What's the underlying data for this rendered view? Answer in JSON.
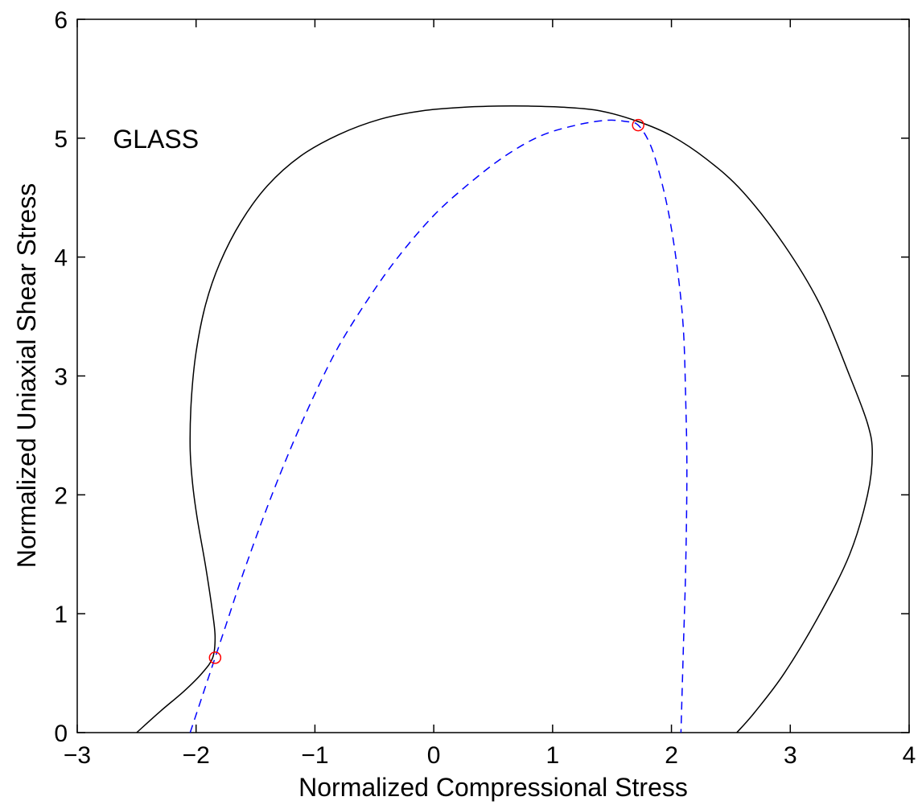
{
  "chart_data": {
    "type": "line",
    "title": "",
    "xlabel": "Normalized Compressional Stress",
    "ylabel": "Normalized Uniaxial Shear Stress",
    "xlim": [
      -3,
      4
    ],
    "ylim": [
      0,
      6
    ],
    "grid": false,
    "legend": "none",
    "x_ticks": [
      -3,
      -2,
      -1,
      0,
      1,
      2,
      3,
      4
    ],
    "x_tick_labels": [
      "−3",
      "−2",
      "−1",
      "0",
      "1",
      "2",
      "3",
      "4"
    ],
    "y_ticks": [
      0,
      1,
      2,
      3,
      4,
      5,
      6
    ],
    "y_tick_labels": [
      "0",
      "1",
      "2",
      "3",
      "4",
      "5",
      "6"
    ],
    "annotations": [
      {
        "text": "GLASS",
        "x": -2.7,
        "y": 5.0
      }
    ],
    "series": [
      {
        "style": "solid",
        "color": "#000000",
        "x": [
          -2.5,
          -2.3,
          -2.1,
          -1.95,
          -1.86,
          -1.84,
          -1.86,
          -1.92,
          -1.99,
          -2.03,
          -2.05,
          -2.04,
          -2.0,
          -1.92,
          -1.8,
          -1.62,
          -1.4,
          -1.12,
          -0.8,
          -0.45,
          -0.1,
          0.25,
          0.55,
          0.8,
          1.1,
          1.4,
          1.72,
          2.0,
          2.3,
          2.6,
          2.95,
          3.25,
          3.5,
          3.65,
          3.69,
          3.65,
          3.5,
          3.25,
          2.95,
          2.7,
          2.55
        ],
        "y": [
          0.0,
          0.18,
          0.35,
          0.5,
          0.63,
          0.8,
          1.0,
          1.4,
          1.8,
          2.1,
          2.4,
          2.8,
          3.2,
          3.6,
          3.95,
          4.3,
          4.6,
          4.85,
          5.03,
          5.16,
          5.23,
          5.26,
          5.27,
          5.27,
          5.26,
          5.23,
          5.14,
          5.02,
          4.82,
          4.55,
          4.1,
          3.6,
          3.0,
          2.6,
          2.35,
          2.0,
          1.5,
          1.0,
          0.5,
          0.17,
          0.0
        ]
      },
      {
        "style": "dashed",
        "color": "#0000ff",
        "x": [
          -2.05,
          -1.95,
          -1.84,
          -1.75,
          -1.6,
          -1.4,
          -1.2,
          -1.0,
          -0.8,
          -0.55,
          -0.3,
          0.0,
          0.3,
          0.6,
          0.9,
          1.2,
          1.45,
          1.62,
          1.72,
          1.82,
          1.9,
          1.98,
          2.05,
          2.1,
          2.12,
          2.13,
          2.12,
          2.1,
          2.08
        ],
        "y": [
          0.0,
          0.3,
          0.63,
          0.9,
          1.35,
          1.9,
          2.4,
          2.85,
          3.25,
          3.65,
          4.0,
          4.35,
          4.62,
          4.85,
          5.02,
          5.11,
          5.15,
          5.14,
          5.11,
          4.95,
          4.7,
          4.35,
          3.9,
          3.4,
          2.8,
          2.2,
          1.4,
          0.7,
          0.0
        ]
      }
    ],
    "markers": [
      {
        "x": -1.84,
        "y": 0.63,
        "shape": "circle",
        "color": "#ff0000"
      },
      {
        "x": 1.72,
        "y": 5.11,
        "shape": "circle",
        "color": "#ff0000"
      }
    ]
  }
}
